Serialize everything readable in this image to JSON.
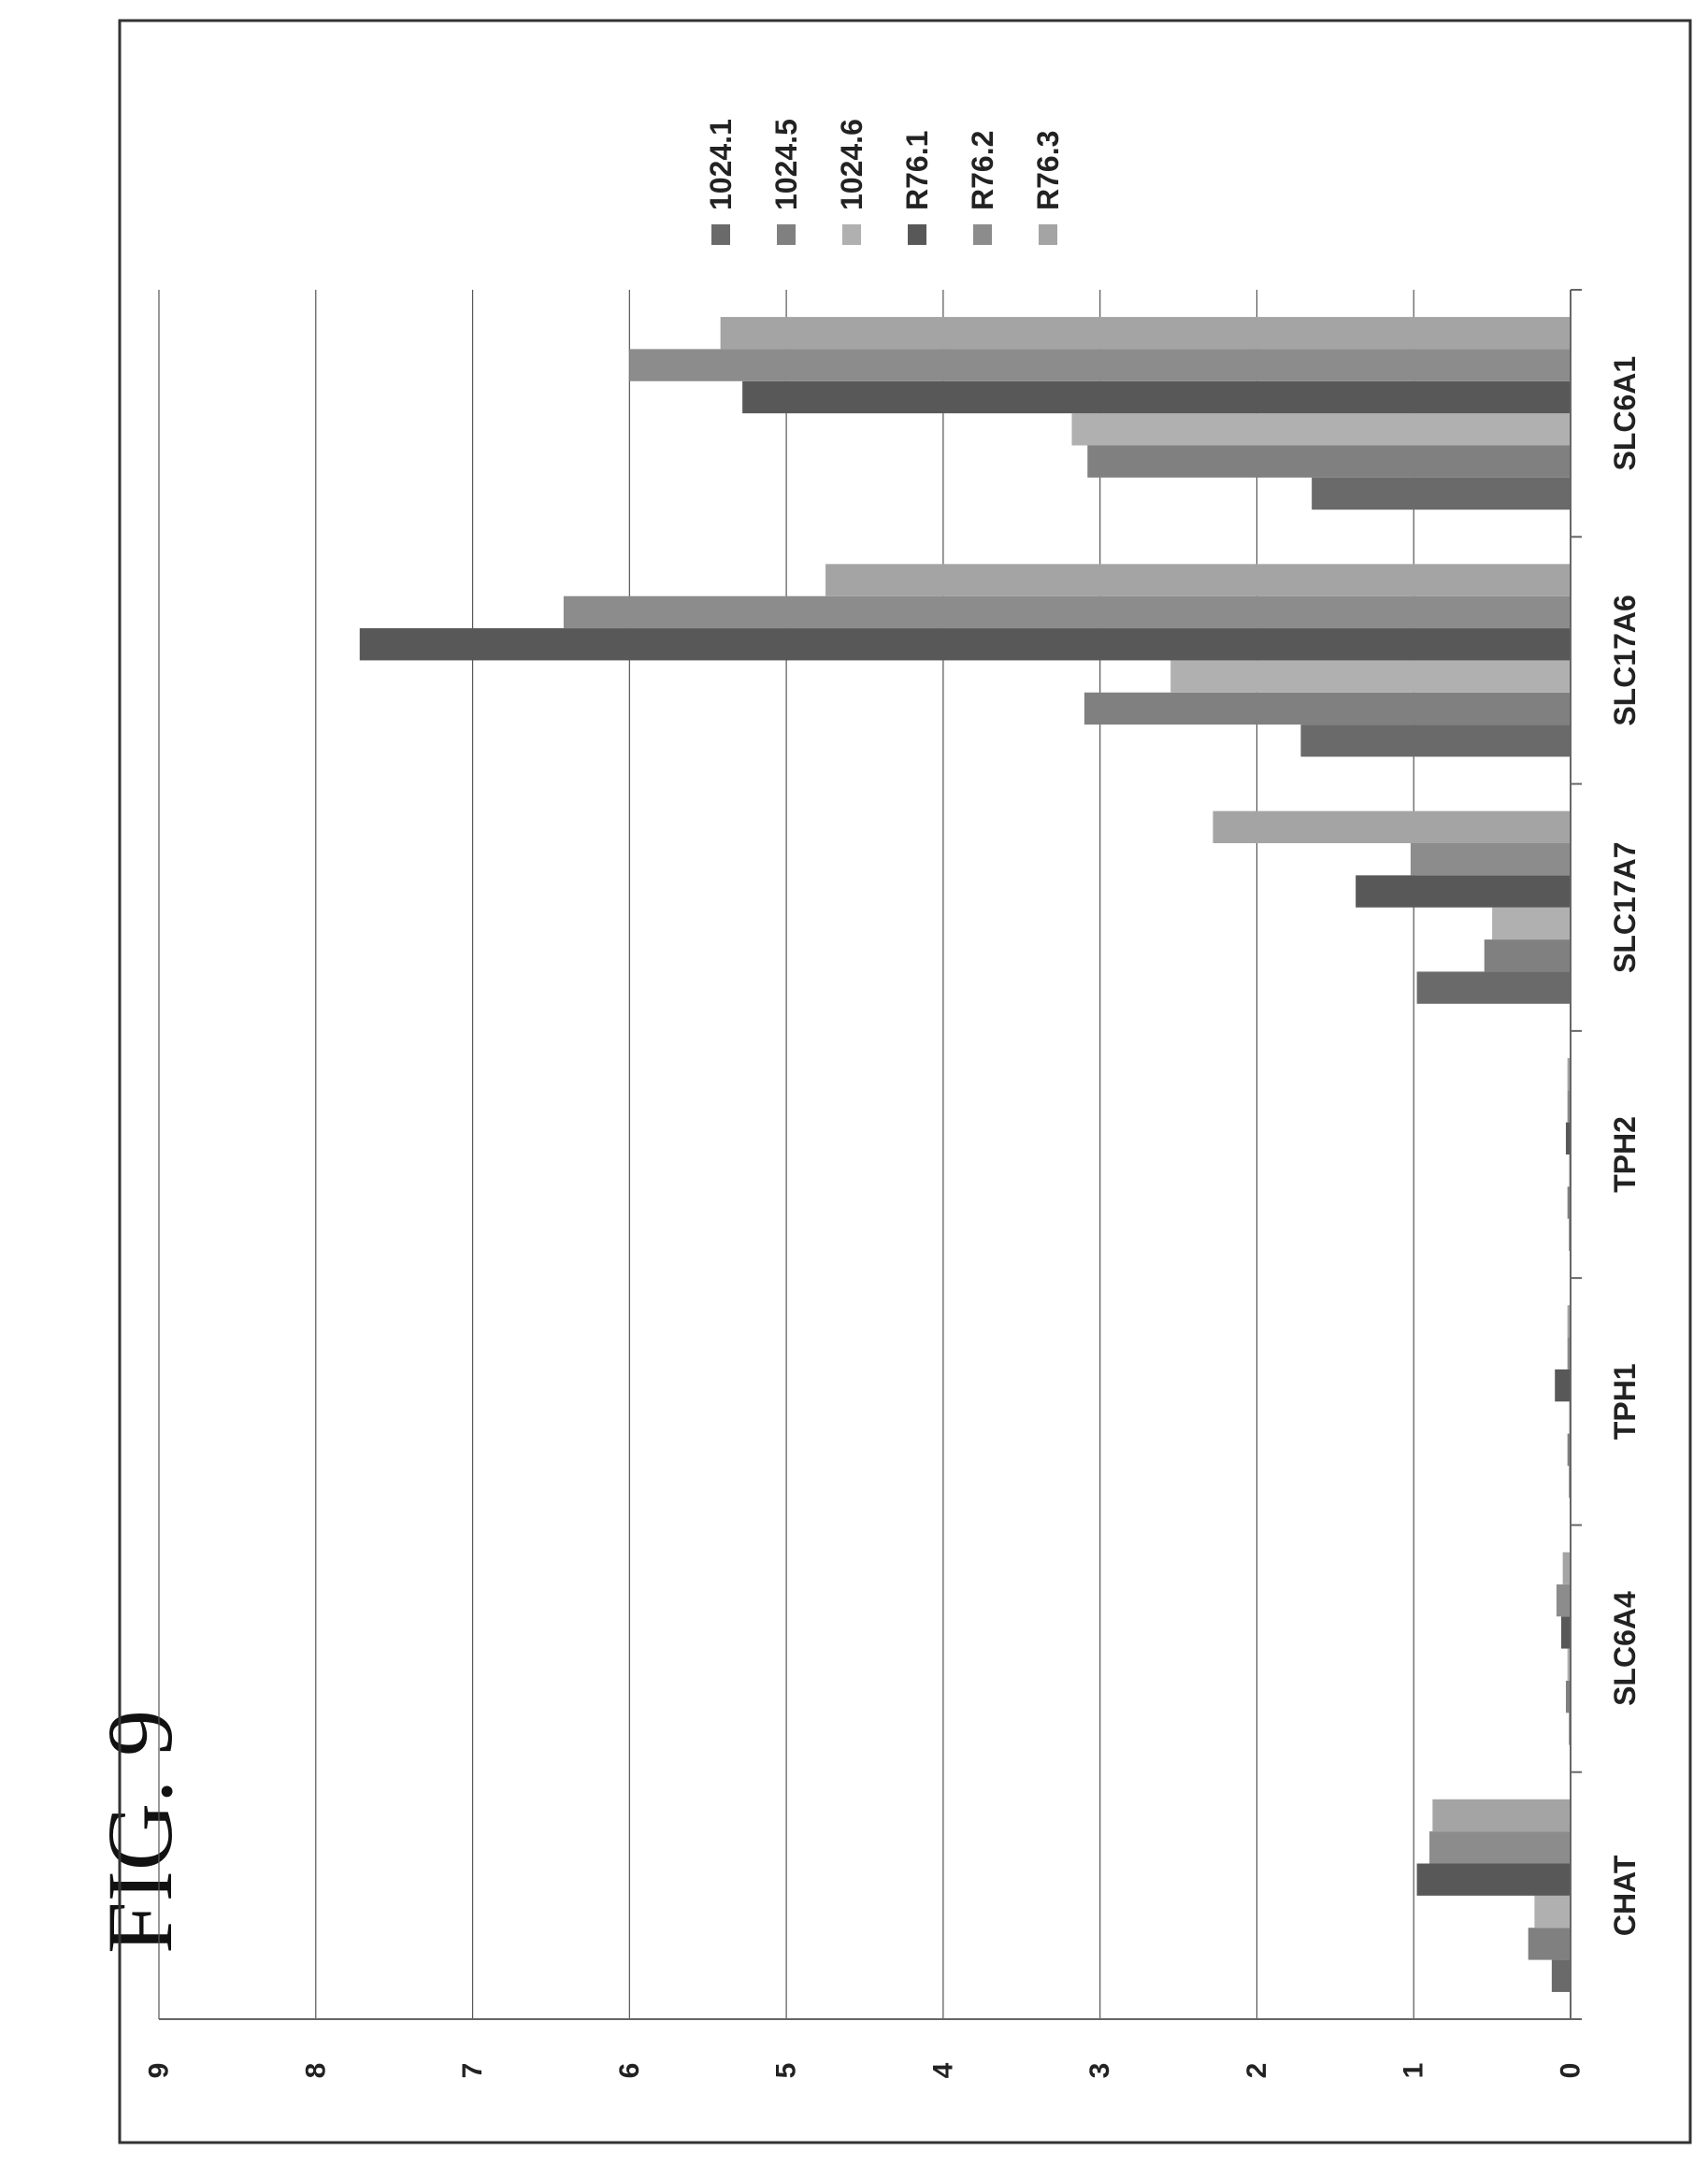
{
  "figure_label": "FIG. 9",
  "chart_data": {
    "type": "bar",
    "orientation": "vertical (figure printed rotated 90° counter-clockwise)",
    "categories": [
      "CHAT",
      "SLC6A4",
      "TPH1",
      "TPH2",
      "SLC17A7",
      "SLC17A6",
      "SLC6A1"
    ],
    "series": [
      {
        "name": "1024.1",
        "color": "#6a6a6a",
        "values": [
          0.12,
          0.01,
          0.01,
          0.01,
          0.98,
          1.72,
          1.65
        ]
      },
      {
        "name": "1024.5",
        "color": "#808080",
        "values": [
          0.27,
          0.03,
          0.02,
          0.02,
          0.55,
          3.1,
          3.08
        ]
      },
      {
        "name": "1024.6",
        "color": "#b0b0b0",
        "values": [
          0.23,
          0.02,
          0.01,
          0.01,
          0.5,
          2.55,
          3.18
        ]
      },
      {
        "name": "R76.1",
        "color": "#585858",
        "values": [
          0.98,
          0.06,
          0.1,
          0.03,
          1.37,
          7.72,
          5.28
        ]
      },
      {
        "name": "R76.2",
        "color": "#8c8c8c",
        "values": [
          0.9,
          0.09,
          0.02,
          0.02,
          1.02,
          6.42,
          6.0
        ]
      },
      {
        "name": "R76.3",
        "color": "#a4a4a4",
        "values": [
          0.88,
          0.05,
          0.02,
          0.02,
          2.28,
          4.75,
          5.42
        ]
      }
    ],
    "yticks": [
      "0",
      "1",
      "2",
      "3",
      "4",
      "5",
      "6",
      "7",
      "8",
      "9"
    ],
    "ylim": [
      0,
      9
    ],
    "grid": true,
    "legend": "top-right (rotated view)",
    "title": "",
    "xlabel": "",
    "ylabel": ""
  }
}
